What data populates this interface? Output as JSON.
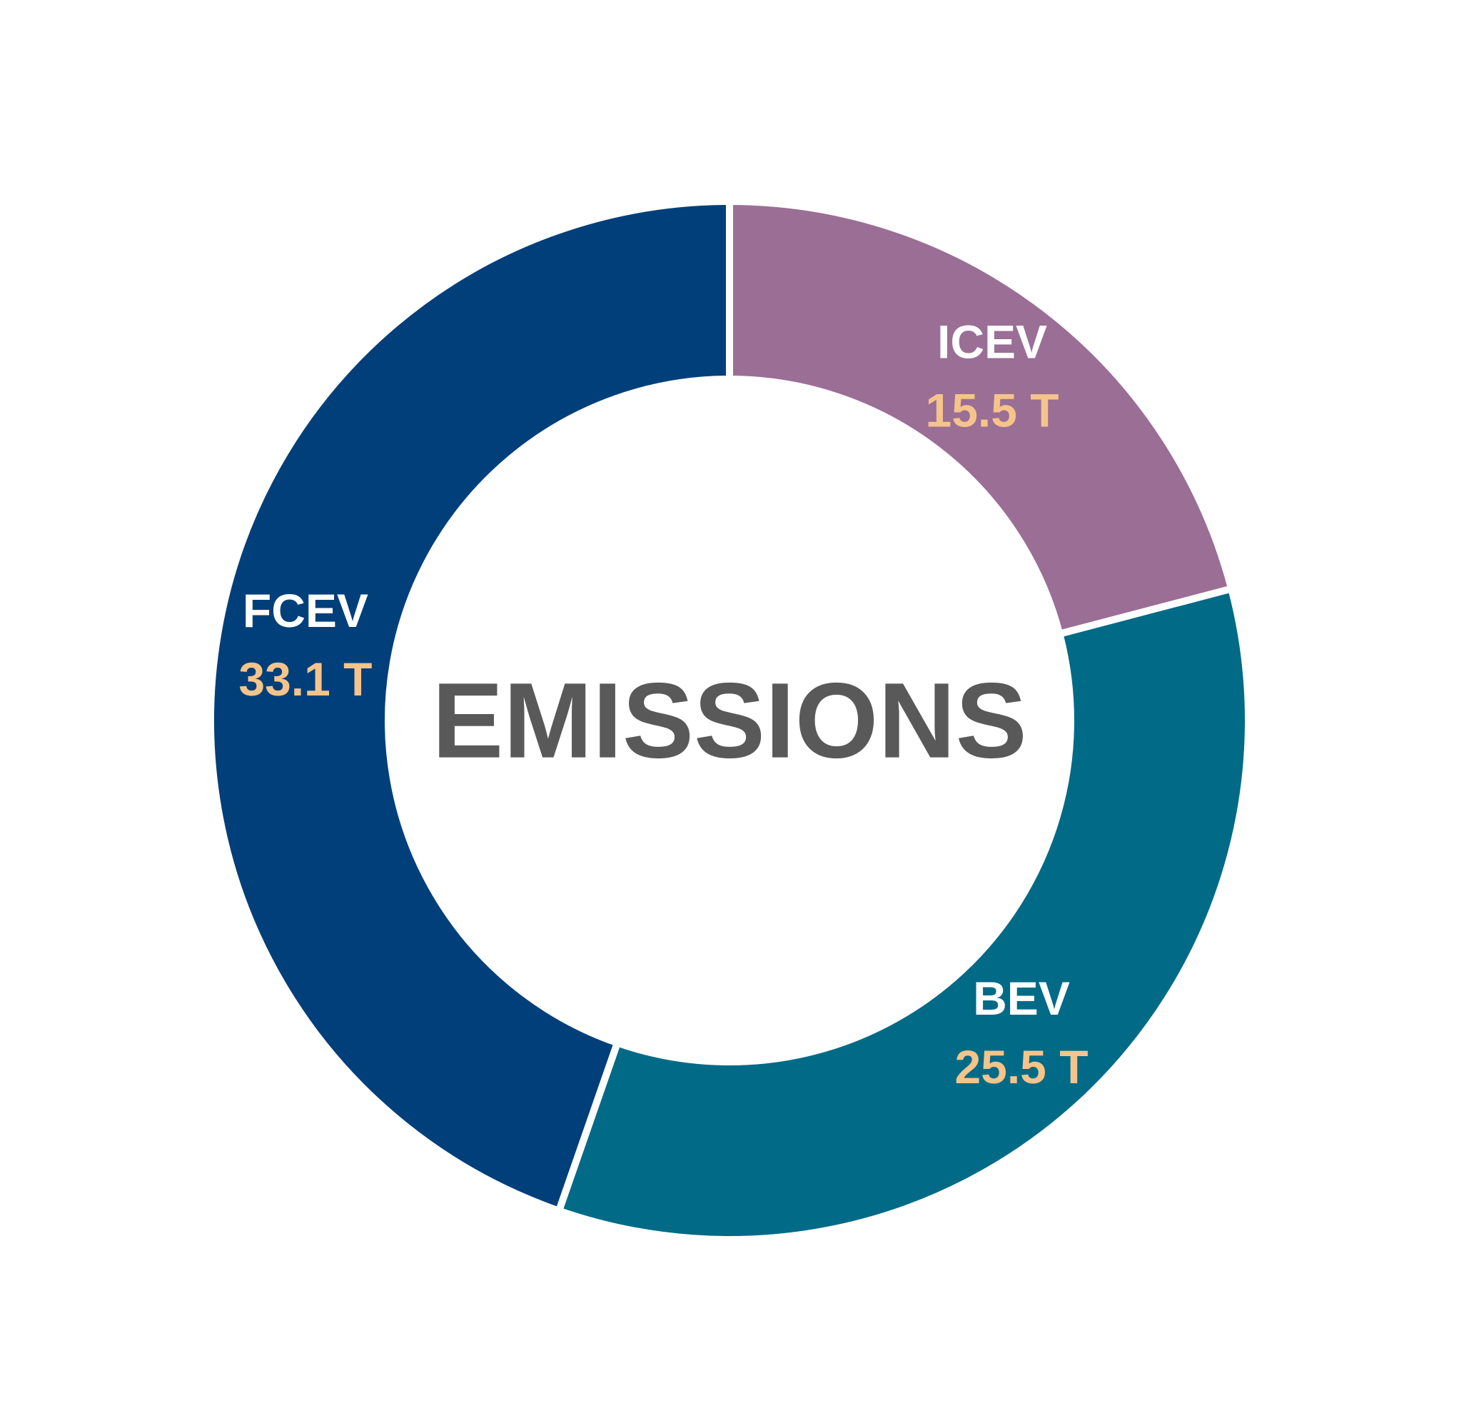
{
  "chart_data": {
    "type": "donut",
    "title": "EMISSIONS",
    "categories": [
      "ICEV",
      "BEV",
      "FCEV"
    ],
    "values": [
      15.5,
      25.5,
      33.1
    ],
    "value_labels": [
      "15.5 T",
      "25.5 T",
      "33.1 T"
    ],
    "colors": [
      "#9b6e96",
      "#006a87",
      "#003f7a"
    ]
  }
}
